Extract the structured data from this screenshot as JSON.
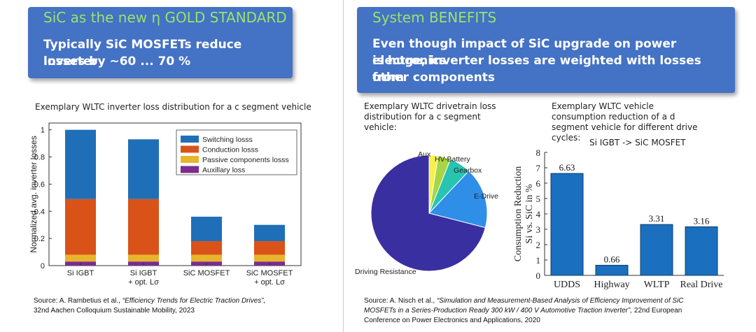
{
  "left": {
    "box_title": "SiC as the new η GOLD STANDARD",
    "box_text_line1": "Typically SiC MOSFETs reduce inverter",
    "box_text_line2": "losses by ~60 ... 70 %",
    "chart_title": "Exemplary WLTC inverter loss distribution for a c segment vehicle",
    "source_prefix": "Source: A. Rambetius et al.,",
    "source_title": "“Efficiency Trends for Electric Traction Drives”,",
    "source_line2": "32nd Aachen Colloquium Sustainable Mobility, 2023"
  },
  "right": {
    "box_title": "System BENEFITS",
    "box_text_line1": "Even though impact of SiC upgrade on power electronics",
    "box_text_line2": "is huge, inverter losses are weighted with losses from",
    "box_text_line3": "other components",
    "pie_caption_line1": "Exemplary WLTC drivetrain loss",
    "pie_caption_line2": "distribution for a c segment",
    "pie_caption_line3": "vehicle:",
    "bar_caption_line1": "Exemplary WLTC vehicle",
    "bar_caption_line2": "consumption reduction of a d",
    "bar_caption_line3": "segment vehicle for different drive",
    "bar_caption_line4": "cycles:",
    "annotation": "Si IGBT -> SiC MOSFET",
    "source_prefix": "Source:  A. Nisch et al.,",
    "source_title_line1": "“Simulation and Measurement-Based Analysis of Efficiency Improvement of SiC",
    "source_title_line2": "MOSFETs in a Series-Production Ready 300 kW / 400 V Automotive Traction Inverter”,",
    "source_tail_line2": "22nd European",
    "source_line3": "Conference on Power Electronics and Applications, 2020"
  },
  "chart_data": [
    {
      "type": "bar",
      "stacked": true,
      "title": "Exemplary WLTC inverter loss distribution for a c segment vehicle",
      "ylabel": "Normalized avg. inverter losses",
      "categories": [
        "Si IGBT",
        "Si IGBT + opt. Lσ",
        "SiC MOSFET",
        "SiC MOSFET + opt. Lσ"
      ],
      "category_lines": [
        [
          "Si IGBT"
        ],
        [
          "Si IGBT",
          "+ opt. Lσ"
        ],
        [
          "SiC MOSFET"
        ],
        [
          "SiC MOSFET",
          "+ opt. Lσ"
        ]
      ],
      "ylim": [
        0,
        1.05
      ],
      "yticks": [
        "0",
        "0.2",
        "0.4",
        "0.6",
        "0.8",
        "1"
      ],
      "legend_position": "top-right",
      "series": [
        {
          "name": "Auxillary loss",
          "color": "#7b2c8f",
          "values": [
            0.03,
            0.03,
            0.03,
            0.03
          ]
        },
        {
          "name": "Passive components losss",
          "color": "#e8b52a",
          "values": [
            0.05,
            0.05,
            0.05,
            0.05
          ]
        },
        {
          "name": "Conduction losss",
          "color": "#d95319",
          "values": [
            0.41,
            0.41,
            0.1,
            0.1
          ]
        },
        {
          "name": "Switching losss",
          "color": "#1f6fb8",
          "values": [
            0.51,
            0.44,
            0.18,
            0.12
          ]
        }
      ],
      "legend_order": [
        "Switching losss",
        "Conduction losss",
        "Passive components losss",
        "Auxillary loss"
      ]
    },
    {
      "type": "pie",
      "title": "Exemplary WLTC drivetrain loss distribution for a c segment vehicle:",
      "slices": [
        {
          "label": "Driving Resistance",
          "value": 71,
          "color": "#3a2fa0"
        },
        {
          "label": "Aux",
          "value": 2.5,
          "color": "#f5f04a"
        },
        {
          "label": "HV-Battery",
          "value": 3.5,
          "color": "#a8d545"
        },
        {
          "label": "Gearbox",
          "value": 6,
          "color": "#28c4b0"
        },
        {
          "label": "E-Drive",
          "value": 17,
          "color": "#2e8ee8"
        }
      ]
    },
    {
      "type": "bar",
      "title": "Exemplary WLTC vehicle consumption reduction of a d segment vehicle for different drive cycles:",
      "ylabel_line1": "Consumption Reduction",
      "ylabel_line2": "Si vs. SiC in %",
      "categories": [
        "UDDS",
        "Highway",
        "WLTP",
        "Real Drive"
      ],
      "values": [
        6.63,
        0.66,
        3.31,
        3.16
      ],
      "value_labels": [
        "6.63",
        "0.66",
        "3.31",
        "3.16"
      ],
      "ylim": [
        0,
        8
      ],
      "yticks": [
        "0",
        "1",
        "2",
        "3",
        "4",
        "5",
        "6",
        "7",
        "8"
      ],
      "color": "#1a6fbe"
    }
  ]
}
